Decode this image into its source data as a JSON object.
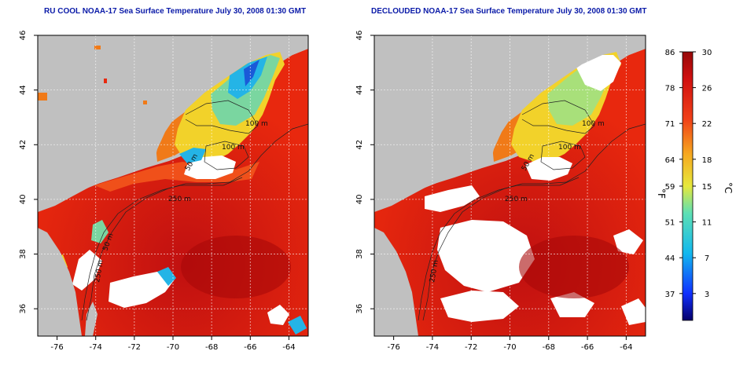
{
  "panels": [
    {
      "title": "RU COOL NOAA-17 Sea Surface Temperature July 30, 2008 01:30 GMT",
      "contour_labels": [
        "100 m",
        "100 m",
        "50 m",
        "250 m",
        "50 m",
        "250 m"
      ]
    },
    {
      "title": "DECLOUDED NOAA-17 Sea Surface Temperature July 30, 2008 01:30 GMT",
      "contour_labels": [
        "100 m",
        "100 m",
        "50 m",
        "250 m",
        "250 m"
      ]
    }
  ],
  "axes": {
    "x_ticks": [
      "-76",
      "-74",
      "-72",
      "-70",
      "-68",
      "-66",
      "-64"
    ],
    "y_ticks": [
      "36",
      "38",
      "40",
      "42",
      "44",
      "46"
    ]
  },
  "colorbar": {
    "fahrenheit_ticks": [
      "86",
      "78",
      "71",
      "64",
      "59",
      "51",
      "44",
      "37"
    ],
    "celsius_ticks": [
      "30",
      "26",
      "22",
      "18",
      "15",
      "11",
      "7",
      "3"
    ],
    "fahrenheit_label": "°F",
    "celsius_label": "°C"
  },
  "colors": {
    "land": "#c0c0c0",
    "warm": "#d81e10",
    "hot": "#b80e0e",
    "orange": "#f07a18",
    "yellow": "#f2d22a",
    "cool": "#7ad6a0",
    "cold": "#24b4e6",
    "title": "#0a1aa8"
  }
}
